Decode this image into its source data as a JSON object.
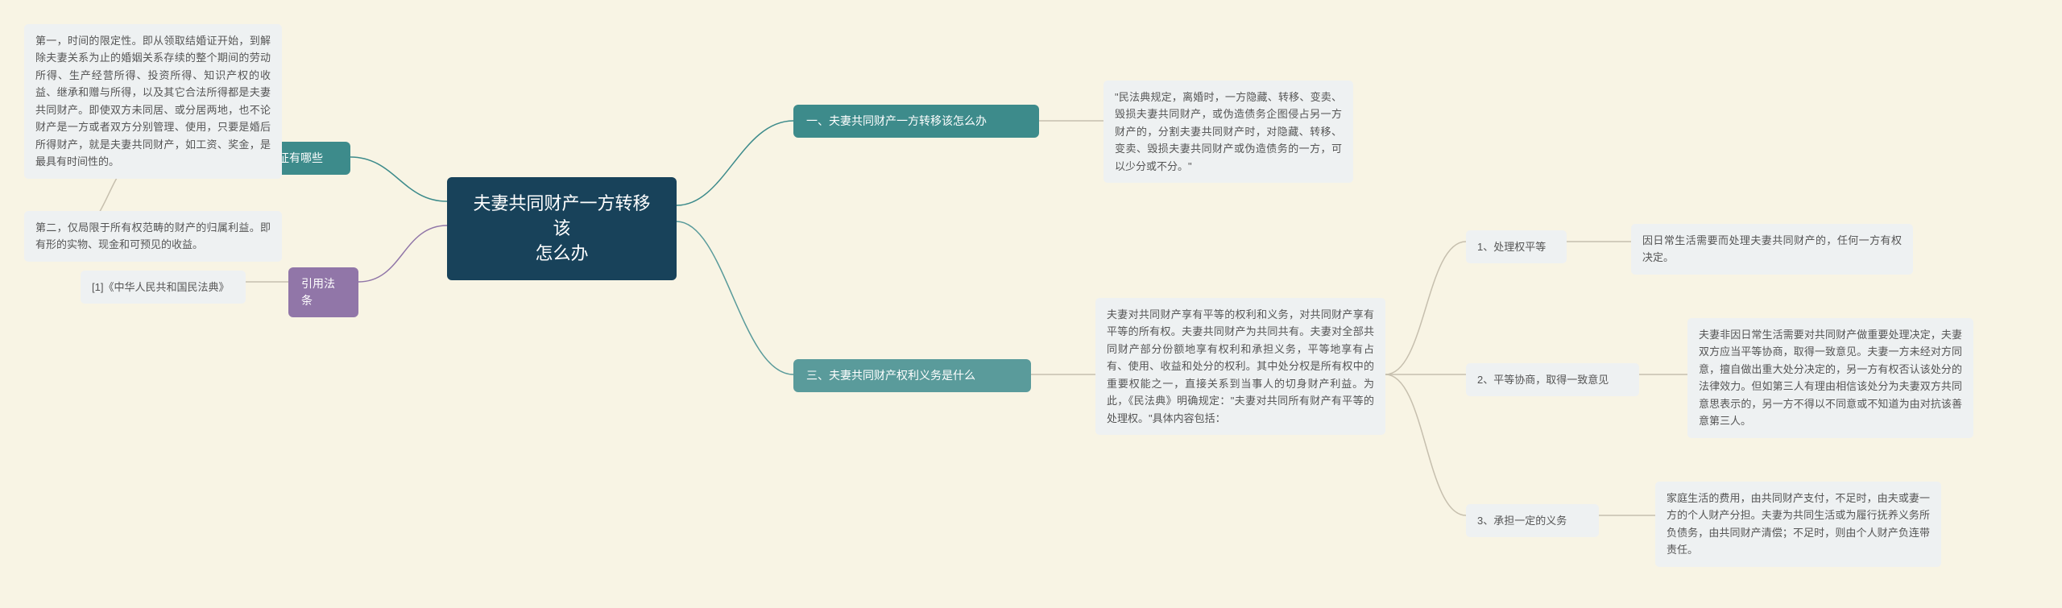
{
  "root": {
    "label": "夫妻共同财产一方转移该\n怎么办"
  },
  "colors": {
    "bg": "#f8f4e4",
    "root": "#18425a",
    "teal": "#3d8b8b",
    "teal2": "#5a9b9b",
    "purple": "#9176a8",
    "leaf_bg": "#eef1f2",
    "leaf_text": "#555555",
    "conn_teal": "#3d8b8b",
    "conn_purple": "#9176a8",
    "conn_gray": "#c6bfae"
  },
  "branches": {
    "b1": {
      "label": "一、夫妻共同财产一方转移该怎么办"
    },
    "b1_leaf": {
      "text": "\"民法典规定，离婚时，一方隐藏、转移、变卖、毁损夫妻共同财产，或伪造债务企图侵占另一方财产的，分割夫妻共同财产时，对隐藏、转移、变卖、毁损夫妻共同财产或伪造债务的一方，可以少分或不分。\""
    },
    "b2": {
      "label": "二、夫妻共同财产财产特征有哪些"
    },
    "b2_leaf1": {
      "text": "第一，时间的限定性。即从领取结婚证开始，到解除夫妻关系为止的婚姻关系存续的整个期间的劳动所得、生产经营所得、投资所得、知识产权的收益、继承和赠与所得，以及其它合法所得都是夫妻共同财产。即使双方未同居、或分居两地，也不论财产是一方或者双方分别管理、使用，只要是婚后所得财产，就是夫妻共同财产，如工资、奖金，是最具有时间性的。"
    },
    "b2_leaf2": {
      "text": "第二，仅局限于所有权范畴的财产的归属利益。即有形的实物、现金和可预见的收益。"
    },
    "b3": {
      "label": "三、夫妻共同财产权利义务是什么"
    },
    "b3_desc": {
      "text": "夫妻对共同财产享有平等的权利和义务，对共同财产享有平等的所有权。夫妻共同财产为共同共有。夫妻对全部共同财产部分份额地享有权利和承担义务，平等地享有占有、使用、收益和处分的权利。其中处分权是所有权中的重要权能之一，直接关系到当事人的切身财产利益。为此，《民法典》明确规定：\"夫妻对共同所有财产有平等的处理权。\"具体内容包括："
    },
    "b3_s1": {
      "label": "1、处理权平等"
    },
    "b3_s1_leaf": {
      "text": "因日常生活需要而处理夫妻共同财产的，任何一方有权决定。"
    },
    "b3_s2": {
      "label": "2、平等协商，取得一致意见"
    },
    "b3_s2_leaf": {
      "text": "夫妻非因日常生活需要对共同财产做重要处理决定，夫妻双方应当平等协商，取得一致意见。夫妻一方未经对方同意，擅自做出重大处分决定的，另一方有权否认该处分的法律效力。但如第三人有理由相信该处分为夫妻双方共同意思表示的，另一方不得以不同意或不知道为由对抗该善意第三人。"
    },
    "b3_s3": {
      "label": "3、承担一定的义务"
    },
    "b3_s3_leaf": {
      "text": "家庭生活的费用，由共同财产支付，不足时，由夫或妻一方的个人财产分担。夫妻为共同生活或为履行抚养义务所负债务，由共同财产清偿；不足时，则由个人财产负连带责任。"
    },
    "b4": {
      "label": "引用法条"
    },
    "b4_leaf": {
      "text": "[1]《中华人民共和国民法典》"
    }
  }
}
